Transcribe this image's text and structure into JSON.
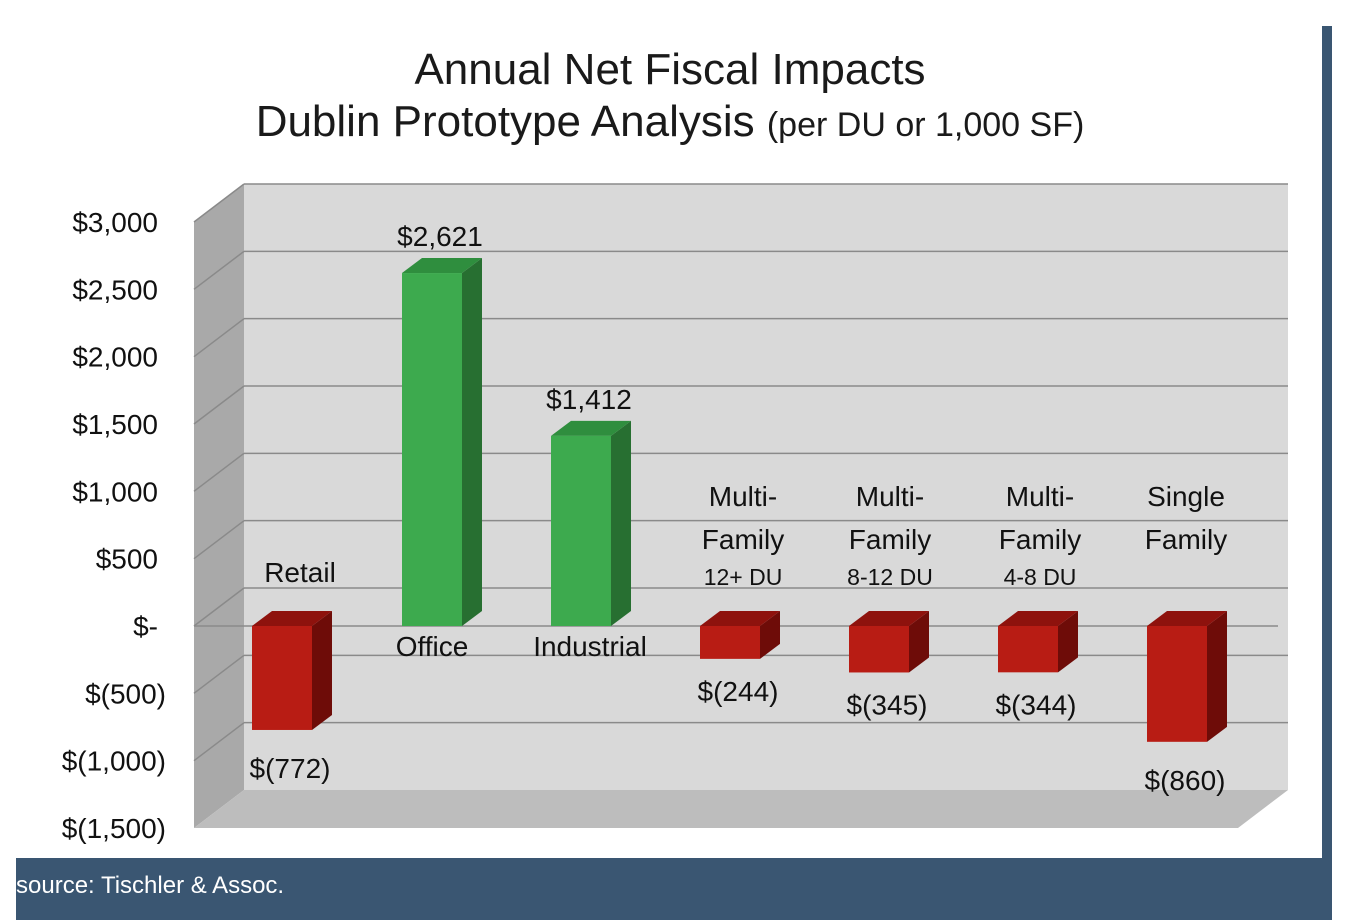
{
  "title": {
    "line1": "Annual Net Fiscal Impacts",
    "line2": "Dublin Prototype Analysis",
    "line2_suffix": "(per DU or 1,000 SF)"
  },
  "footer": {
    "source": "source: Tischler & Assoc."
  },
  "colors": {
    "positive": "#3daa4e",
    "negative": "#b81c14",
    "frame": "#3a5672",
    "plot_bg": "#d9d9d9"
  },
  "chart_data": {
    "type": "bar",
    "title": "Annual Net Fiscal Impacts Dublin Prototype Analysis (per DU or 1,000 SF)",
    "categories": [
      {
        "lines": [
          "Retail"
        ],
        "sub": ""
      },
      {
        "lines": [
          "Office"
        ],
        "sub": ""
      },
      {
        "lines": [
          "Industrial"
        ],
        "sub": ""
      },
      {
        "lines": [
          "Multi-",
          "Family"
        ],
        "sub": "12+ DU"
      },
      {
        "lines": [
          "Multi-",
          "Family"
        ],
        "sub": "8-12 DU"
      },
      {
        "lines": [
          "Multi-",
          "Family"
        ],
        "sub": "4-8 DU"
      },
      {
        "lines": [
          "Single",
          "Family"
        ],
        "sub": ""
      }
    ],
    "values": [
      -772,
      2621,
      1412,
      -244,
      -345,
      -344,
      -860
    ],
    "value_labels": [
      "$(772)",
      "$2,621",
      "$1,412",
      "$(244)",
      "$(345)",
      "$(344)",
      "$(860)"
    ],
    "ylim": [
      -1500,
      3000
    ],
    "yticks": [
      3000,
      2500,
      2000,
      1500,
      1000,
      500,
      0,
      -500,
      -1000,
      -1500
    ],
    "ytick_labels": [
      "$3,000",
      "$2,500",
      "$2,000",
      "$1,500",
      "$1,000",
      "$500",
      "$-",
      "$(500)",
      "$(1,000)",
      "$(1,500)"
    ],
    "grid": true,
    "legend": "none",
    "style": "3d"
  }
}
